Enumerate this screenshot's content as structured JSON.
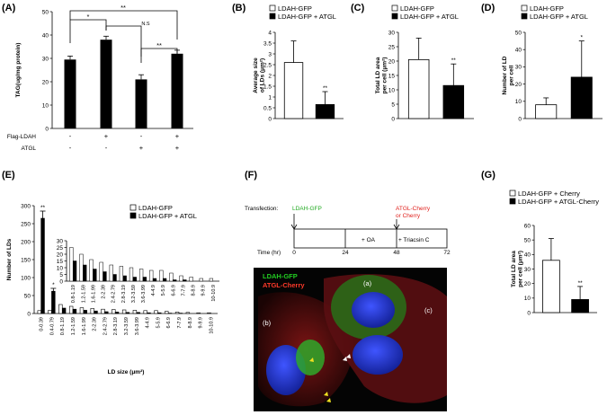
{
  "panels": {
    "A": {
      "label": "(A)"
    },
    "B": {
      "label": "(B)"
    },
    "C": {
      "label": "(C)"
    },
    "D": {
      "label": "(D)"
    },
    "E": {
      "label": "(E)"
    },
    "F": {
      "label": "(F)"
    },
    "G": {
      "label": "(G)"
    }
  },
  "panel_a_conditions": {
    "row1_label": "Flag-LDAH",
    "row2_label": "ATGL",
    "row1": [
      "-",
      "+",
      "-",
      "+"
    ],
    "row2": [
      "-",
      "-",
      "+",
      "+"
    ]
  },
  "panel_a_sig": {
    "s1": "*",
    "s2": "**",
    "s3": "N.S",
    "s4": "**"
  },
  "panel_f": {
    "transfection_label": "Transfection:",
    "ldah_gfp": "LDAH-GFP",
    "atgl_cherry_line1": "ATGL-Cherry",
    "atgl_cherry_line2": "or Cherry",
    "time_label": "Time (hr)",
    "t0": "0",
    "t24": "24",
    "t48": "48",
    "t72": "72",
    "oa": "+ OA",
    "triacsin": "+ Triacsin C",
    "legend_gfp": "LDAH-GFP",
    "legend_cherry": "ATGL-Cherry",
    "cell_a": "(a)",
    "cell_b": "(b)",
    "cell_c": "(c)"
  },
  "colors": {
    "green_label": "#22aa22",
    "red_label": "#e0201c"
  },
  "chart_data": [
    {
      "id": "A",
      "type": "bar",
      "ylabel": "TAG(ug/mg protein)",
      "ylim": [
        0,
        50
      ],
      "yticks": [
        0,
        10,
        20,
        30,
        40,
        50
      ],
      "values": [
        29.5,
        38,
        21,
        32
      ],
      "errors": [
        1.5,
        1.5,
        2,
        1.5
      ]
    },
    {
      "id": "B",
      "type": "bar",
      "ylabel": "Average size of LDs (μm²)",
      "ylim": [
        0,
        4
      ],
      "yticks": [
        0,
        0.5,
        1,
        1.5,
        2,
        2.5,
        3,
        3.5,
        4
      ],
      "legend": [
        "LDAH-GFP",
        "LDAH-GFP + ATGL"
      ],
      "values": [
        2.6,
        0.65
      ],
      "errors": [
        1.0,
        0.6
      ],
      "sig": [
        "",
        "**"
      ]
    },
    {
      "id": "C",
      "type": "bar",
      "ylabel": "Total LD area per cell (μm²)",
      "ylim": [
        0,
        30
      ],
      "yticks": [
        0,
        5,
        10,
        15,
        20,
        25,
        30
      ],
      "legend": [
        "LDAH-GFP",
        "LDAH-GFP + ATGL"
      ],
      "values": [
        20.5,
        11.5
      ],
      "errors": [
        7.5,
        7.5
      ],
      "sig": [
        "",
        "**"
      ]
    },
    {
      "id": "D",
      "type": "bar",
      "ylabel": "Number of LD per cell",
      "ylim": [
        0,
        50
      ],
      "yticks": [
        0,
        10,
        20,
        30,
        40,
        50
      ],
      "legend": [
        "LDAH-GFP",
        "LDAH-GFP + ATGL"
      ],
      "values": [
        8,
        24
      ],
      "errors": [
        4,
        21
      ],
      "sig": [
        "",
        "*"
      ]
    },
    {
      "id": "E",
      "type": "bar",
      "ylabel": "Number of LDs",
      "xlabel": "LD size (μm²)",
      "ylim": [
        0,
        300
      ],
      "yticks": [
        0,
        50,
        100,
        150,
        200,
        250,
        300
      ],
      "legend": [
        "LDAH-GFP",
        "LDAH-GFP + ATGL"
      ],
      "categories": [
        "0-0.39",
        "0.4-0.79",
        "0.8-1.19",
        "1.2-1.59",
        "1.6-1.99",
        "2-2.39",
        "2.4-2.79",
        "2.8-3.19",
        "3.2-3.59",
        "3.6-3.99",
        "4-4.9",
        "5-5.9",
        "6-6.9",
        "7-7.9",
        "8-8.9",
        "9-9.9",
        "10-10.9"
      ],
      "series": [
        {
          "name": "LDAH-GFP",
          "values": [
            8,
            9,
            25,
            20,
            16,
            14,
            12,
            11,
            10,
            9,
            8,
            8,
            6,
            4,
            3,
            2,
            2
          ]
        },
        {
          "name": "LDAH-GFP + ATGL",
          "values": [
            265,
            62,
            15,
            12,
            9,
            7,
            5,
            4,
            3,
            3,
            2,
            2,
            1,
            1,
            0,
            0,
            0
          ]
        }
      ],
      "sig": [
        "**",
        "*"
      ],
      "inset": {
        "ylim": [
          0,
          30
        ],
        "yticks": [
          0,
          5,
          10,
          15,
          20,
          25,
          30
        ],
        "categories": [
          "0.8-1.19",
          "1.2-1.59",
          "1.6-1.99",
          "2-2.39",
          "2.4-2.79",
          "2.8-3.19",
          "3.2-3.59",
          "3.6-3.99",
          "4-4.9",
          "5-5.9",
          "6-6.9",
          "7-7.9",
          "8-8.9",
          "9-9.9",
          "10-10.9"
        ],
        "series": [
          {
            "name": "LDAH-GFP",
            "values": [
              25,
              20,
              16,
              14,
              12,
              11,
              10,
              9,
              8,
              8,
              6,
              4,
              3,
              2,
              2
            ]
          },
          {
            "name": "LDAH-GFP + ATGL",
            "values": [
              15,
              12,
              9,
              7,
              5,
              4,
              3,
              3,
              2,
              2,
              1,
              1,
              0,
              0,
              0
            ]
          }
        ]
      }
    },
    {
      "id": "G",
      "type": "bar",
      "ylabel": "Total LD area per cell (μm²)",
      "ylim": [
        0,
        60
      ],
      "yticks": [
        0,
        10,
        20,
        30,
        40,
        50,
        60
      ],
      "legend": [
        "LDAH-GFP + Cherry",
        "LDAH-GFP + ATGL-Cherry"
      ],
      "values": [
        36,
        9
      ],
      "errors": [
        15,
        9
      ],
      "sig": [
        "",
        "**"
      ]
    }
  ]
}
